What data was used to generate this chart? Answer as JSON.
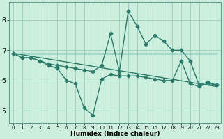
{
  "xlabel": "Humidex (Indice chaleur)",
  "ylabel": "",
  "background_color": "#cceedd",
  "grid_color": "#99ccbb",
  "line_color": "#2a7a6a",
  "xlim": [
    -0.5,
    23.5
  ],
  "ylim": [
    4.6,
    8.6
  ],
  "yticks": [
    5,
    6,
    7,
    8
  ],
  "xticks": [
    0,
    1,
    2,
    3,
    4,
    5,
    6,
    7,
    8,
    9,
    10,
    11,
    12,
    13,
    14,
    15,
    16,
    17,
    18,
    19,
    20,
    21,
    22,
    23
  ],
  "series": [
    {
      "x": [
        0,
        1,
        2,
        3,
        4,
        5,
        6,
        7,
        8,
        9,
        10,
        11,
        12,
        13,
        14,
        15,
        16,
        17,
        18,
        19,
        20,
        21,
        22,
        23
      ],
      "y": [
        6.9,
        6.75,
        6.75,
        6.65,
        6.5,
        6.4,
        6.0,
        5.9,
        5.1,
        4.85,
        6.05,
        6.2,
        6.15,
        6.15,
        6.15,
        6.1,
        6.05,
        6.0,
        6.0,
        6.65,
        5.9,
        5.8,
        5.9,
        5.85
      ],
      "marker": "D",
      "markersize": 2.5,
      "linewidth": 1.0
    },
    {
      "x": [
        0,
        23
      ],
      "y": [
        6.9,
        6.9
      ],
      "marker": null,
      "markersize": 0,
      "linewidth": 1.0
    },
    {
      "x": [
        0,
        23
      ],
      "y": [
        6.9,
        5.8
      ],
      "marker": null,
      "markersize": 0,
      "linewidth": 1.0
    },
    {
      "x": [
        0,
        1,
        2,
        3,
        4,
        5,
        6,
        7,
        8,
        9,
        10,
        11,
        12,
        13,
        14,
        15,
        16,
        17,
        18,
        19,
        20,
        21,
        22,
        23
      ],
      "y": [
        6.9,
        6.75,
        6.75,
        6.65,
        6.55,
        6.5,
        6.45,
        6.4,
        6.35,
        6.3,
        6.5,
        7.55,
        6.3,
        8.3,
        7.8,
        7.2,
        7.5,
        7.3,
        7.0,
        7.0,
        6.65,
        5.85,
        5.95,
        5.85
      ],
      "marker": "D",
      "markersize": 2.5,
      "linewidth": 1.0
    }
  ]
}
